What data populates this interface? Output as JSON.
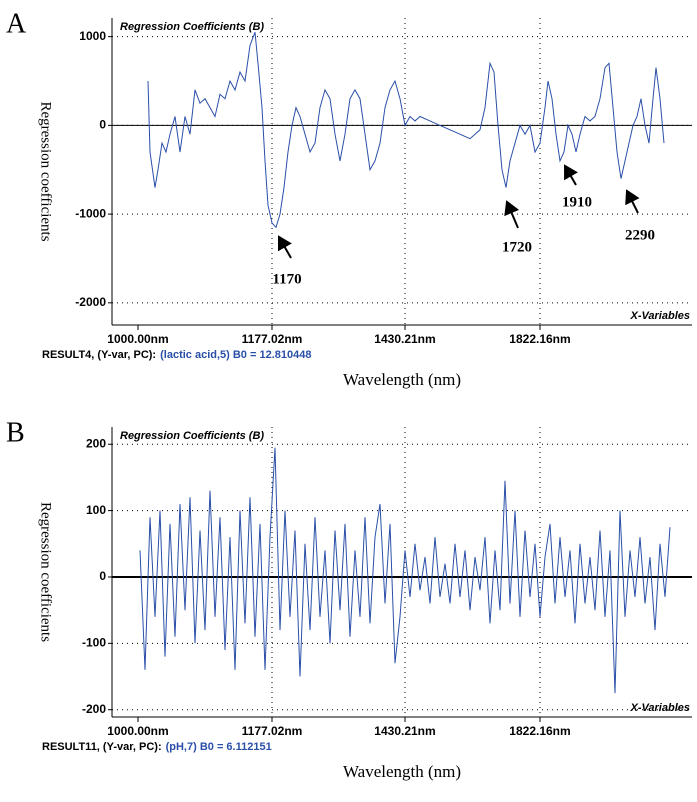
{
  "chart_data": [
    {
      "type": "line",
      "panel": "A",
      "title": "Regression Coefficients (B)",
      "x_variables": "X-Variables",
      "y_label": "Regression coefficients",
      "x_label": "Wavelength (nm)",
      "footer_label": "RESULT4, (Y-var, PC):",
      "footer_value": "(lactic acid,5) B0 = 12.810448",
      "color": "#2a4fa8",
      "grid": true,
      "xlim": [
        -26,
        554
      ],
      "xticks": [
        {
          "value": 0,
          "label": "1000.00nm"
        },
        {
          "value": 134,
          "label": "1177.02nm"
        },
        {
          "value": 267,
          "label": "1430.21nm"
        },
        {
          "value": 402,
          "label": "1822.16nm"
        }
      ],
      "ylim": [
        -2250,
        1210
      ],
      "yticks": [
        1000,
        0,
        -1000,
        -2000
      ],
      "annotations": [
        "1170",
        "1720",
        "1910",
        "2290"
      ],
      "x": [
        10,
        12,
        17,
        20,
        24,
        28,
        32,
        37,
        42,
        47,
        52,
        57,
        62,
        67,
        72,
        77,
        82,
        87,
        92,
        97,
        102,
        107,
        112,
        117,
        120,
        124,
        127,
        130,
        134,
        138,
        142,
        146,
        150,
        154,
        158,
        162,
        167,
        172,
        177,
        182,
        187,
        192,
        197,
        202,
        207,
        212,
        217,
        222,
        227,
        232,
        237,
        242,
        247,
        252,
        257,
        262,
        267,
        272,
        277,
        282,
        292,
        302,
        312,
        322,
        332,
        342,
        347,
        352,
        356,
        360,
        364,
        368,
        372,
        377,
        382,
        387,
        392,
        397,
        402,
        407,
        410,
        414,
        418,
        422,
        426,
        430,
        434,
        438,
        442,
        447,
        452,
        457,
        462,
        467,
        471,
        475,
        479,
        483,
        487,
        491,
        495,
        499,
        503,
        507,
        511,
        515,
        518,
        522,
        526
      ],
      "values": [
        500,
        -300,
        -700,
        -500,
        -200,
        -300,
        -100,
        100,
        -300,
        100,
        -100,
        400,
        250,
        300,
        200,
        100,
        350,
        300,
        500,
        400,
        600,
        500,
        900,
        1050,
        700,
        200,
        -400,
        -900,
        -1100,
        -1150,
        -1000,
        -700,
        -300,
        0,
        200,
        100,
        -100,
        -300,
        -200,
        200,
        400,
        300,
        -100,
        -400,
        -100,
        300,
        400,
        300,
        -100,
        -500,
        -400,
        -200,
        200,
        400,
        500,
        300,
        0,
        100,
        50,
        100,
        50,
        0,
        -50,
        -100,
        -150,
        -50,
        200,
        700,
        600,
        0,
        -500,
        -700,
        -400,
        -200,
        0,
        -100,
        0,
        -300,
        -200,
        200,
        500,
        300,
        -100,
        -400,
        -300,
        0,
        -100,
        -300,
        -100,
        100,
        50,
        100,
        300,
        650,
        700,
        200,
        -300,
        -600,
        -400,
        -200,
        0,
        100,
        300,
        0,
        -200,
        300,
        650,
        300,
        -200
      ]
    },
    {
      "type": "line",
      "panel": "B",
      "title": "Regression Coefficients (B)",
      "x_variables": "X-Variables",
      "y_label": "Regression coefficients",
      "x_label": "Wavelength (nm)",
      "footer_label": "RESULT11, (Y-var, PC):",
      "footer_value": "(pH,7) B0 = 6.112151",
      "color": "#2a4fa8",
      "grid": true,
      "xlim": [
        -26,
        554
      ],
      "xticks": [
        {
          "value": 0,
          "label": "1000.00nm"
        },
        {
          "value": 134,
          "label": "1177.02nm"
        },
        {
          "value": 267,
          "label": "1430.21nm"
        },
        {
          "value": 402,
          "label": "1822.16nm"
        }
      ],
      "ylim": [
        -211,
        226
      ],
      "yticks": [
        200,
        100,
        0,
        -100,
        -200
      ],
      "x": [
        2,
        7,
        12,
        17,
        22,
        27,
        32,
        37,
        42,
        47,
        52,
        57,
        62,
        67,
        72,
        77,
        82,
        87,
        92,
        97,
        102,
        107,
        112,
        117,
        122,
        127,
        132,
        137,
        142,
        147,
        152,
        157,
        162,
        167,
        172,
        177,
        182,
        187,
        192,
        197,
        202,
        207,
        212,
        217,
        222,
        227,
        232,
        237,
        242,
        247,
        252,
        257,
        262,
        267,
        272,
        277,
        282,
        287,
        292,
        297,
        302,
        307,
        312,
        317,
        322,
        327,
        332,
        337,
        342,
        347,
        352,
        357,
        362,
        367,
        372,
        377,
        382,
        387,
        392,
        397,
        402,
        407,
        412,
        417,
        422,
        427,
        432,
        437,
        442,
        447,
        452,
        457,
        462,
        467,
        472,
        477,
        482,
        487,
        492,
        497,
        502,
        507,
        512,
        517,
        522,
        527,
        532
      ],
      "values": [
        40,
        -140,
        90,
        -60,
        100,
        -120,
        80,
        -90,
        110,
        -50,
        120,
        -100,
        70,
        -80,
        130,
        -60,
        90,
        -110,
        60,
        -140,
        100,
        -70,
        120,
        -90,
        80,
        -140,
        60,
        195,
        -80,
        100,
        -60,
        70,
        -150,
        50,
        -80,
        90,
        -60,
        40,
        -100,
        70,
        -50,
        80,
        -90,
        40,
        -60,
        90,
        -70,
        60,
        110,
        -40,
        80,
        -130,
        -60,
        40,
        -30,
        50,
        -20,
        30,
        -40,
        60,
        -30,
        20,
        -40,
        50,
        -30,
        40,
        -50,
        30,
        -20,
        60,
        -70,
        40,
        -50,
        145,
        -40,
        100,
        -60,
        70,
        -30,
        50,
        -60,
        30,
        80,
        -40,
        60,
        -30,
        40,
        -70,
        50,
        -40,
        30,
        -50,
        70,
        -60,
        40,
        -175,
        100,
        -60,
        40,
        -30,
        60,
        -40,
        30,
        -80,
        50,
        -30,
        75
      ]
    }
  ]
}
